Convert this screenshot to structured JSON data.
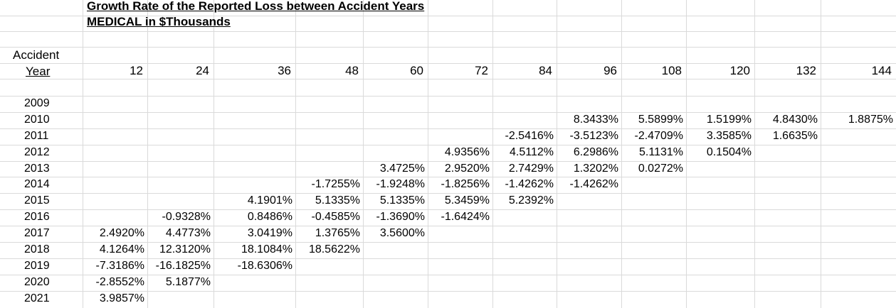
{
  "title_line1": "Growth Rate of the Reported Loss between Accident Years",
  "title_line2": "MEDICAL in $Thousands",
  "row_header": {
    "line1": "Accident",
    "line2": "Year"
  },
  "columns": [
    "12",
    "24",
    "36",
    "48",
    "60",
    "72",
    "84",
    "96",
    "108",
    "120",
    "132",
    "144"
  ],
  "years": [
    "2009",
    "2010",
    "2011",
    "2012",
    "2013",
    "2014",
    "2015",
    "2016",
    "2017",
    "2018",
    "2019",
    "2020",
    "2021"
  ],
  "rows": [
    [
      null,
      null,
      null,
      null,
      null,
      null,
      null,
      null,
      null,
      null,
      null,
      null
    ],
    [
      null,
      null,
      null,
      null,
      null,
      null,
      null,
      "8.3433%",
      "5.5899%",
      "1.5199%",
      "4.8430%",
      "1.8875%"
    ],
    [
      null,
      null,
      null,
      null,
      null,
      null,
      "-2.5416%",
      "-3.5123%",
      "-2.4709%",
      "3.3585%",
      "1.6635%",
      null
    ],
    [
      null,
      null,
      null,
      null,
      null,
      "4.9356%",
      "4.5112%",
      "6.2986%",
      "5.1131%",
      "0.1504%",
      null,
      null
    ],
    [
      null,
      null,
      null,
      null,
      "3.4725%",
      "2.9520%",
      "2.7429%",
      "1.3202%",
      "0.0272%",
      null,
      null,
      null
    ],
    [
      null,
      null,
      null,
      "-1.7255%",
      "-1.9248%",
      "-1.8256%",
      "-1.4262%",
      "-1.4262%",
      null,
      null,
      null,
      null
    ],
    [
      null,
      null,
      "4.1901%",
      "5.1335%",
      "5.1335%",
      "5.3459%",
      "5.2392%",
      null,
      null,
      null,
      null,
      null
    ],
    [
      null,
      "-0.9328%",
      "0.8486%",
      "-0.4585%",
      "-1.3690%",
      "-1.6424%",
      null,
      null,
      null,
      null,
      null,
      null
    ],
    [
      "2.4920%",
      "4.4773%",
      "3.0419%",
      "1.3765%",
      "3.5600%",
      null,
      null,
      null,
      null,
      null,
      null,
      null
    ],
    [
      "4.1264%",
      "12.3120%",
      "18.1084%",
      "18.5622%",
      null,
      null,
      null,
      null,
      null,
      null,
      null,
      null
    ],
    [
      "-7.3186%",
      "-16.1825%",
      "-18.6306%",
      null,
      null,
      null,
      null,
      null,
      null,
      null,
      null,
      null
    ],
    [
      "-2.8552%",
      "5.1877%",
      null,
      null,
      null,
      null,
      null,
      null,
      null,
      null,
      null,
      null
    ],
    [
      "3.9857%",
      null,
      null,
      null,
      null,
      null,
      null,
      null,
      null,
      null,
      null,
      null
    ]
  ]
}
